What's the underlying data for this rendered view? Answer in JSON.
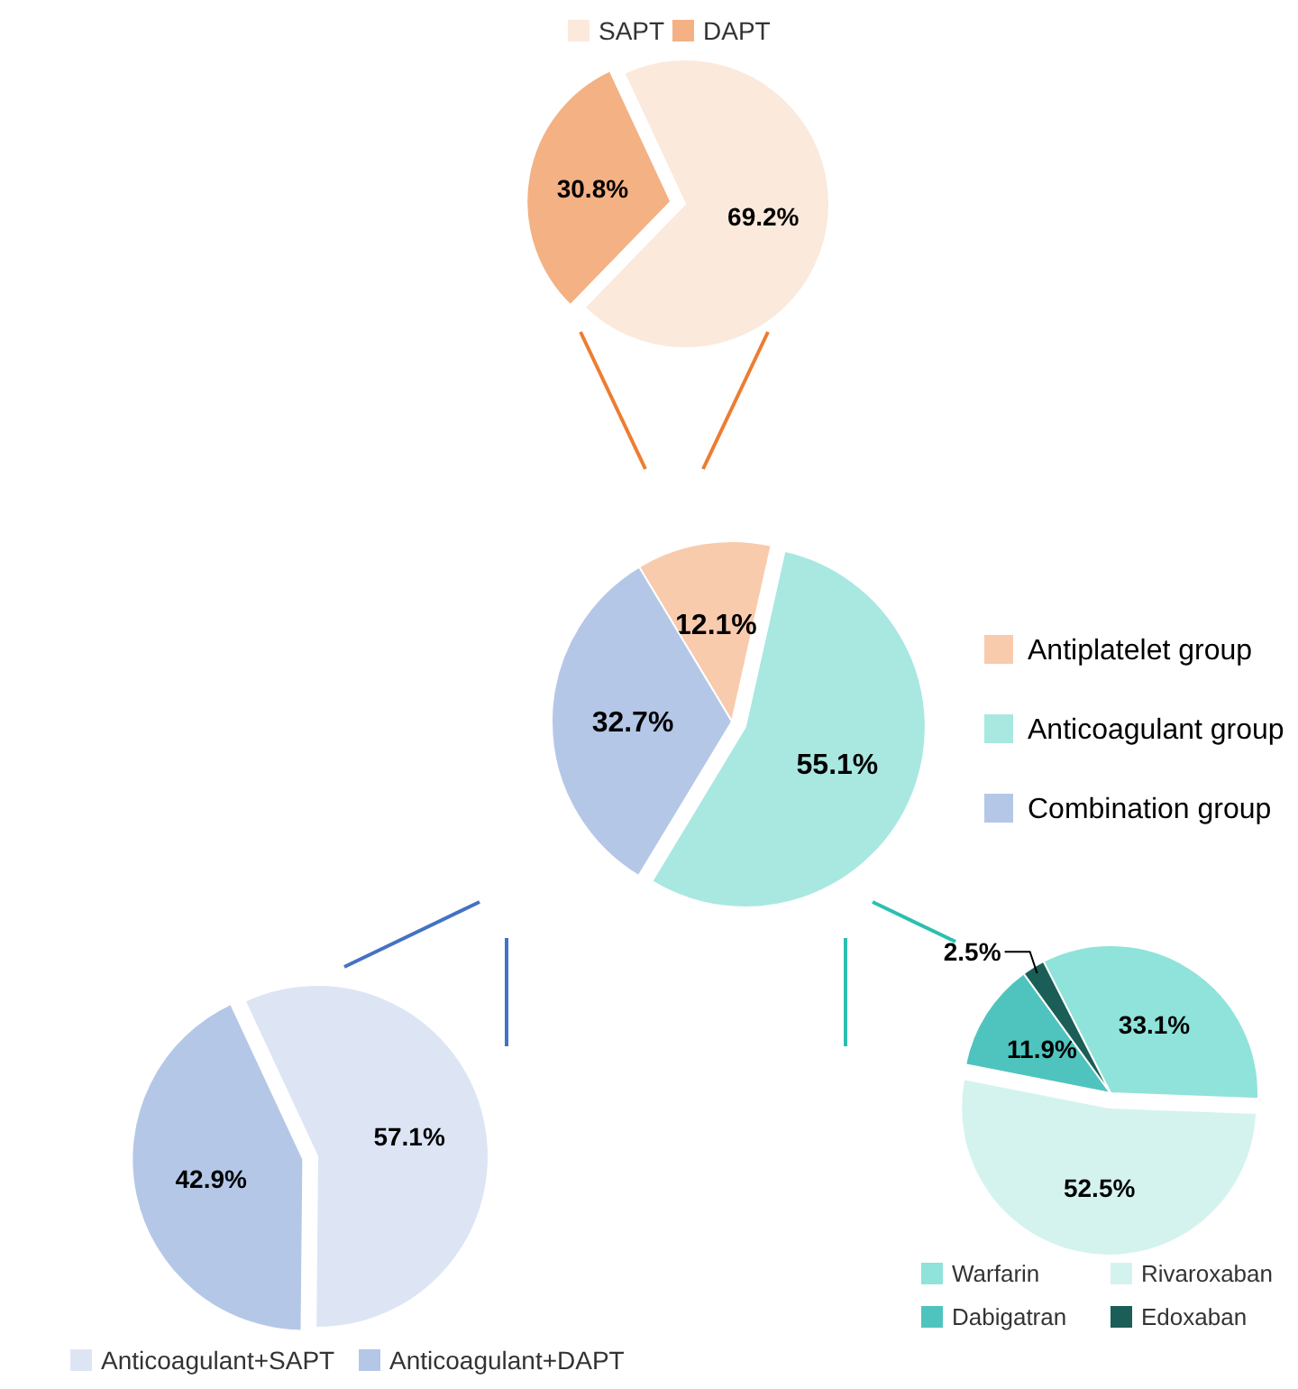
{
  "chart_data": [
    {
      "type": "pie",
      "categories": [
        "SAPT",
        "DAPT"
      ],
      "values": [
        69.2,
        30.8
      ],
      "colors": [
        "#fbe9dc",
        "#f4b183"
      ],
      "legend": "top",
      "value_labels": [
        "69.2%",
        "30.8%"
      ]
    },
    {
      "type": "pie",
      "categories": [
        "Antiplatelet group",
        "Anticoagulant group",
        "Combination group"
      ],
      "values": [
        12.1,
        55.1,
        32.7
      ],
      "colors": [
        "#f8cbad",
        "#a8e8e1",
        "#b4c7e7"
      ],
      "legend": "right",
      "value_labels": [
        "12.1%",
        "55.1%",
        "32.7%"
      ]
    },
    {
      "type": "pie",
      "categories": [
        "Anticoagulant+SAPT",
        "Anticoagulant+DAPT"
      ],
      "values": [
        57.1,
        42.9
      ],
      "colors": [
        "#dde5f5",
        "#b4c7e7"
      ],
      "legend": "bottom",
      "value_labels": [
        "57.1%",
        "42.9%"
      ]
    },
    {
      "type": "pie",
      "categories": [
        "Warfarin",
        "Rivaroxaban",
        "Dabigatran",
        "Edoxaban"
      ],
      "values": [
        33.1,
        52.5,
        11.9,
        2.5
      ],
      "colors": [
        "#8fe3da",
        "#d4f3ef",
        "#4fc4be",
        "#1a5e57"
      ],
      "legend": "bottom",
      "value_labels": [
        "33.1%",
        "52.5%",
        "11.9%",
        "2.5%"
      ]
    }
  ]
}
